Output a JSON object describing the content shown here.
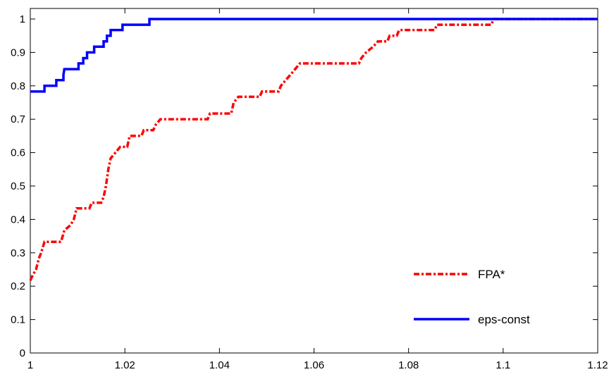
{
  "chart_data": {
    "type": "line",
    "title": "",
    "xlabel": "",
    "ylabel": "",
    "xlim": [
      1,
      1.12
    ],
    "ylim": [
      0,
      1.03
    ],
    "grid": false,
    "legend_position": "bottom-right",
    "x_ticks": [
      "1",
      "1.02",
      "1.04",
      "1.06",
      "1.08",
      "1.1",
      "1.12"
    ],
    "y_ticks": [
      "0",
      "0.1",
      "0.2",
      "0.3",
      "0.4",
      "0.5",
      "0.6",
      "0.7",
      "0.8",
      "0.9",
      "1"
    ],
    "series": [
      {
        "name": "FPA*",
        "color": "#ff0000",
        "style": "dash-dot",
        "points": [
          [
            1.0,
            0.217
          ],
          [
            1.0005,
            0.233
          ],
          [
            1.0012,
            0.25
          ],
          [
            1.0018,
            0.283
          ],
          [
            1.0023,
            0.3
          ],
          [
            1.003,
            0.333
          ],
          [
            1.0065,
            0.333
          ],
          [
            1.0072,
            0.367
          ],
          [
            1.0085,
            0.383
          ],
          [
            1.0092,
            0.4
          ],
          [
            1.0098,
            0.433
          ],
          [
            1.0125,
            0.433
          ],
          [
            1.013,
            0.45
          ],
          [
            1.015,
            0.45
          ],
          [
            1.0155,
            0.467
          ],
          [
            1.016,
            0.5
          ],
          [
            1.0165,
            0.55
          ],
          [
            1.017,
            0.583
          ],
          [
            1.018,
            0.6
          ],
          [
            1.019,
            0.617
          ],
          [
            1.0205,
            0.617
          ],
          [
            1.021,
            0.65
          ],
          [
            1.0235,
            0.65
          ],
          [
            1.024,
            0.667
          ],
          [
            1.026,
            0.667
          ],
          [
            1.0265,
            0.683
          ],
          [
            1.0275,
            0.7
          ],
          [
            1.0375,
            0.7
          ],
          [
            1.038,
            0.717
          ],
          [
            1.0425,
            0.717
          ],
          [
            1.043,
            0.75
          ],
          [
            1.044,
            0.767
          ],
          [
            1.0485,
            0.767
          ],
          [
            1.049,
            0.783
          ],
          [
            1.0525,
            0.783
          ],
          [
            1.053,
            0.8
          ],
          [
            1.054,
            0.817
          ],
          [
            1.055,
            0.833
          ],
          [
            1.056,
            0.85
          ],
          [
            1.057,
            0.867
          ],
          [
            1.0695,
            0.867
          ],
          [
            1.07,
            0.883
          ],
          [
            1.071,
            0.9
          ],
          [
            1.0725,
            0.917
          ],
          [
            1.0735,
            0.933
          ],
          [
            1.0755,
            0.933
          ],
          [
            1.076,
            0.95
          ],
          [
            1.0775,
            0.95
          ],
          [
            1.078,
            0.967
          ],
          [
            1.0855,
            0.967
          ],
          [
            1.086,
            0.983
          ],
          [
            1.0975,
            0.983
          ],
          [
            1.098,
            1.0
          ],
          [
            1.12,
            1.0
          ]
        ]
      },
      {
        "name": "eps-const",
        "color": "#0000ff",
        "style": "solid",
        "points": [
          [
            1.0,
            0.783
          ],
          [
            1.003,
            0.783
          ],
          [
            1.003,
            0.8
          ],
          [
            1.0055,
            0.8
          ],
          [
            1.0055,
            0.817
          ],
          [
            1.007,
            0.817
          ],
          [
            1.007,
            0.833
          ],
          [
            1.0072,
            0.85
          ],
          [
            1.0102,
            0.85
          ],
          [
            1.0102,
            0.867
          ],
          [
            1.0112,
            0.867
          ],
          [
            1.0112,
            0.883
          ],
          [
            1.012,
            0.883
          ],
          [
            1.012,
            0.9
          ],
          [
            1.0135,
            0.9
          ],
          [
            1.0135,
            0.917
          ],
          [
            1.0155,
            0.917
          ],
          [
            1.0155,
            0.933
          ],
          [
            1.0162,
            0.933
          ],
          [
            1.0162,
            0.95
          ],
          [
            1.017,
            0.95
          ],
          [
            1.017,
            0.967
          ],
          [
            1.0195,
            0.967
          ],
          [
            1.0195,
            0.983
          ],
          [
            1.0252,
            0.983
          ],
          [
            1.0252,
            1.0
          ],
          [
            1.12,
            1.0
          ]
        ]
      }
    ]
  }
}
